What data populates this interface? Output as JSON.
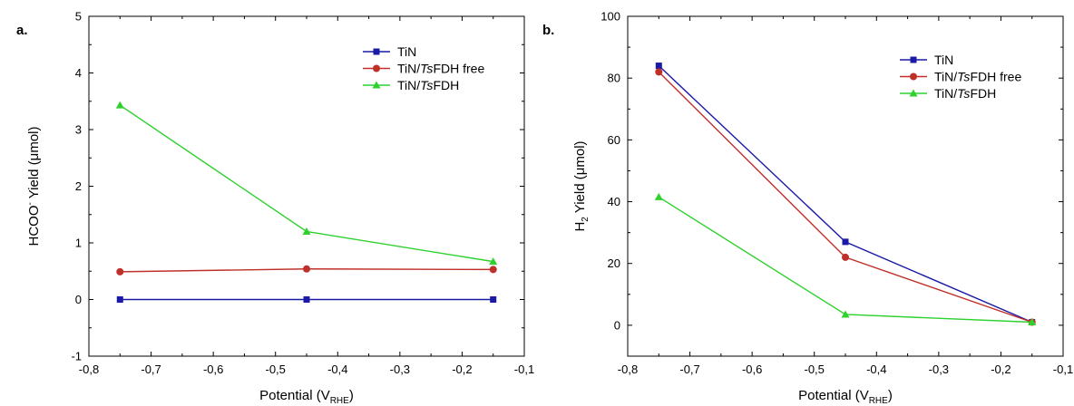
{
  "chart_data": [
    {
      "type": "line",
      "panel_label": "a.",
      "xlabel_main": "Potential (V",
      "xlabel_sub": "RHE",
      "xlabel_end": ")",
      "ylabel_main": "HCOO",
      "ylabel_sup": "-",
      "ylabel_end": " Yield (μmol)",
      "xlim": [
        -0.8,
        -0.1
      ],
      "ylim": [
        -1,
        5
      ],
      "xticks": [
        -0.8,
        -0.7,
        -0.6,
        -0.5,
        -0.4,
        -0.3,
        -0.2,
        -0.1
      ],
      "xtick_labels": [
        "-0,8",
        "-0,7",
        "-0,6",
        "-0,5",
        "-0,4",
        "-0,3",
        "-0,2",
        "-0,1"
      ],
      "yticks": [
        -1,
        0,
        1,
        2,
        3,
        4,
        5
      ],
      "ytick_labels": [
        "-1",
        "0",
        "1",
        "2",
        "3",
        "4",
        "5"
      ],
      "legend_position": "top-right",
      "x": [
        -0.75,
        -0.45,
        -0.15
      ],
      "series": [
        {
          "name_prefix": "TiN",
          "name_italic": "",
          "name_suffix": "",
          "color": "#1a1aa6",
          "marker": "square",
          "values": [
            0.0,
            0.0,
            0.0
          ]
        },
        {
          "name_prefix": "TiN/",
          "name_italic": "Ts",
          "name_suffix": "FDH free",
          "color": "#c0302a",
          "marker": "circle",
          "values": [
            0.49,
            0.54,
            0.53
          ]
        },
        {
          "name_prefix": "TiN/",
          "name_italic": "Ts",
          "name_suffix": "FDH",
          "color": "#2ed12e",
          "marker": "triangle",
          "values": [
            3.43,
            1.2,
            0.67
          ]
        }
      ]
    },
    {
      "type": "line",
      "panel_label": "b.",
      "xlabel_main": "Potential (V",
      "xlabel_sub": "RHE",
      "xlabel_end": ")",
      "ylabel_main": "H",
      "ylabel_sub": "2",
      "ylabel_end": " Yield (μmol)",
      "xlim": [
        -0.8,
        -0.1
      ],
      "ylim": [
        -10,
        100
      ],
      "xticks": [
        -0.8,
        -0.7,
        -0.6,
        -0.5,
        -0.4,
        -0.3,
        -0.2,
        -0.1
      ],
      "xtick_labels": [
        "-0,8",
        "-0,7",
        "-0,6",
        "-0,5",
        "-0,4",
        "-0,3",
        "-0,2",
        "-0,1"
      ],
      "yticks": [
        0,
        20,
        40,
        60,
        80,
        100
      ],
      "ytick_labels": [
        "0",
        "20",
        "40",
        "60",
        "80",
        "100"
      ],
      "legend_position": "top-right",
      "x": [
        -0.75,
        -0.45,
        -0.15
      ],
      "series": [
        {
          "name_prefix": "TiN",
          "name_italic": "",
          "name_suffix": "",
          "color": "#1a1aa6",
          "marker": "square",
          "values": [
            84,
            27,
            1
          ]
        },
        {
          "name_prefix": "TiN/",
          "name_italic": "Ts",
          "name_suffix": "FDH free",
          "color": "#c0302a",
          "marker": "circle",
          "values": [
            82,
            22,
            1
          ]
        },
        {
          "name_prefix": "TiN/",
          "name_italic": "Ts",
          "name_suffix": "FDH",
          "color": "#2ed12e",
          "marker": "triangle",
          "values": [
            41.5,
            3.5,
            1
          ]
        }
      ]
    }
  ]
}
